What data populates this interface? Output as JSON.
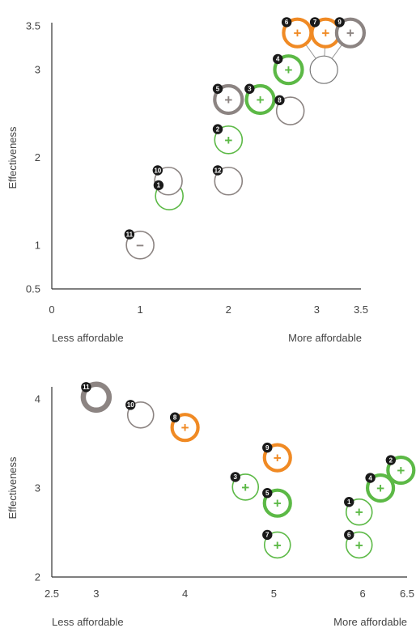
{
  "colors": {
    "green": "#5cb946",
    "orange": "#f08a24",
    "gray": "#8c8482",
    "axis": "#333333",
    "badge": "#1a1a1a",
    "text": "#444444",
    "empty_ring": "#777777"
  },
  "chart_data": [
    {
      "type": "scatter",
      "ylabel": "Effectiveness",
      "xlim": [
        0,
        3.5
      ],
      "ylim": [
        0.5,
        3.5
      ],
      "x_ticks": [
        "0",
        "1",
        "2",
        "3",
        "3.5"
      ],
      "y_ticks": [
        "0.5",
        "1",
        "2",
        "3",
        "3.5"
      ],
      "x_note_left": "Less affordable",
      "x_note_right": "More affordable",
      "points": [
        {
          "id": "1",
          "x": 1.33,
          "y": 1.56,
          "color": "green",
          "weight": "thin",
          "symbol": ""
        },
        {
          "id": "2",
          "x": 2.0,
          "y": 2.2,
          "color": "green",
          "weight": "thin",
          "symbol": "+"
        },
        {
          "id": "3",
          "x": 2.36,
          "y": 2.66,
          "color": "green",
          "weight": "bold",
          "symbol": "+"
        },
        {
          "id": "4",
          "x": 2.68,
          "y": 3.0,
          "color": "green",
          "weight": "bold",
          "symbol": "+"
        },
        {
          "id": "5",
          "x": 2.0,
          "y": 2.66,
          "color": "gray",
          "weight": "bold",
          "symbol": "+"
        },
        {
          "id": "6",
          "x": 2.78,
          "y": 3.42,
          "color": "orange",
          "weight": "bold",
          "symbol": "+"
        },
        {
          "id": "7",
          "x": 3.1,
          "y": 3.42,
          "color": "orange",
          "weight": "bold",
          "symbol": "+"
        },
        {
          "id": "8",
          "x": 2.7,
          "y": 2.53,
          "color": "gray",
          "weight": "thin",
          "symbol": ""
        },
        {
          "id": "9",
          "x": 3.38,
          "y": 3.42,
          "color": "gray",
          "weight": "bold",
          "symbol": "+"
        },
        {
          "id": "10",
          "x": 1.32,
          "y": 1.73,
          "color": "gray",
          "weight": "thin",
          "symbol": ""
        },
        {
          "id": "11",
          "x": 1.0,
          "y": 1.0,
          "color": "gray",
          "weight": "thin",
          "symbol": "−"
        },
        {
          "id": "12",
          "x": 2.0,
          "y": 1.73,
          "color": "gray",
          "weight": "thin",
          "symbol": ""
        }
      ],
      "cluster": {
        "x": 3.08,
        "y": 3.0,
        "members": [
          "6",
          "7",
          "9"
        ]
      }
    },
    {
      "type": "scatter",
      "ylabel": "Effectiveness",
      "xlim": [
        2.5,
        6.5
      ],
      "ylim": [
        2,
        4.1
      ],
      "x_ticks": [
        "2.5",
        "3",
        "4",
        "5",
        "6",
        "6.5"
      ],
      "y_ticks": [
        "2",
        "3",
        "4"
      ],
      "x_note_left": "Less affordable",
      "x_note_right": "More affordable",
      "points": [
        {
          "id": "1",
          "x": 5.96,
          "y": 2.73,
          "color": "green",
          "weight": "thin",
          "symbol": "+"
        },
        {
          "id": "2",
          "x": 6.43,
          "y": 3.2,
          "color": "green",
          "weight": "bold",
          "symbol": "+"
        },
        {
          "id": "3",
          "x": 4.68,
          "y": 3.01,
          "color": "green",
          "weight": "thin",
          "symbol": "+"
        },
        {
          "id": "4",
          "x": 6.2,
          "y": 3.0,
          "color": "green",
          "weight": "bold",
          "symbol": "+"
        },
        {
          "id": "5",
          "x": 5.04,
          "y": 2.83,
          "color": "green",
          "weight": "bold",
          "symbol": "+"
        },
        {
          "id": "6",
          "x": 5.96,
          "y": 2.36,
          "color": "green",
          "weight": "thin",
          "symbol": "+"
        },
        {
          "id": "7",
          "x": 5.04,
          "y": 2.36,
          "color": "green",
          "weight": "thin",
          "symbol": "+"
        },
        {
          "id": "8",
          "x": 4.0,
          "y": 3.68,
          "color": "orange",
          "weight": "bold",
          "symbol": "+"
        },
        {
          "id": "9",
          "x": 5.04,
          "y": 3.34,
          "color": "orange",
          "weight": "bold",
          "symbol": "+"
        },
        {
          "id": "10",
          "x": 3.5,
          "y": 3.82,
          "color": "gray",
          "weight": "thin",
          "symbol": ""
        },
        {
          "id": "11",
          "x": 3.0,
          "y": 4.02,
          "color": "gray",
          "weight": "heavy",
          "symbol": ""
        }
      ]
    }
  ]
}
